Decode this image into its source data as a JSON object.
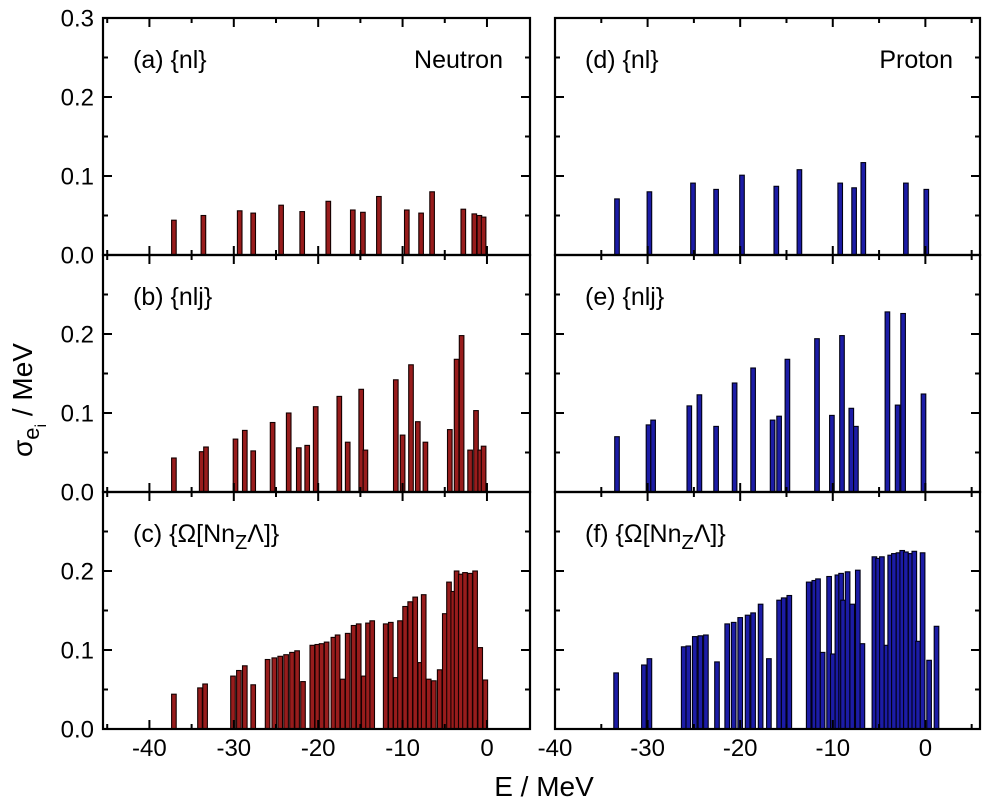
{
  "figure": {
    "background": "#ffffff",
    "text_color": "#000000"
  },
  "chart_data": {
    "type": "bar",
    "title": "",
    "description": "2x3 grid of panels: single-particle energy uncertainties sigma_ei vs energy E for neutrons (left, dark red) and protons (right, dark blue) in three bases",
    "x_axis": {
      "label": "E / MeV",
      "major_ticks": [
        -40,
        -30,
        -20,
        -10,
        0
      ],
      "minor_step": 5,
      "left_column_range": [
        -45.5,
        5.1
      ],
      "right_column_range": [
        -40.0,
        5.9
      ]
    },
    "y_axis": {
      "label": "sigma_ei / MeV",
      "label_segments": [
        {
          "t": "σ"
        },
        {
          "t": "e",
          "sub": true
        },
        {
          "t": "i",
          "subsub": true
        },
        {
          "t": " / MeV"
        }
      ],
      "range": [
        0,
        0.3
      ],
      "major_ticks": [
        0.0,
        0.1,
        0.2,
        0.3
      ],
      "minor_step": 0.05,
      "tick_labels_top_row": [
        "0.3",
        "0.2",
        "0.1",
        "0.0"
      ],
      "tick_labels_other_rows": [
        "0.2",
        "0.1",
        "0.0"
      ]
    },
    "colors": {
      "neutron_fill": "#981c1c",
      "neutron_edge": "#140000",
      "proton_fill": "#1c1ca6",
      "proton_edge": "#000014",
      "axis": "#000000"
    },
    "panels": [
      {
        "key": "a",
        "row": 0,
        "col": 0,
        "series": "neutron",
        "corner_label": "Neutron",
        "label_segments": [
          {
            "t": "(a) {nl}"
          }
        ],
        "bars": [
          [
            -37.1,
            0.044
          ],
          [
            -33.6,
            0.05
          ],
          [
            -29.3,
            0.056
          ],
          [
            -27.7,
            0.053
          ],
          [
            -24.4,
            0.063
          ],
          [
            -21.9,
            0.055
          ],
          [
            -18.8,
            0.068
          ],
          [
            -15.9,
            0.057
          ],
          [
            -14.7,
            0.054
          ],
          [
            -12.8,
            0.074
          ],
          [
            -9.5,
            0.057
          ],
          [
            -7.8,
            0.053
          ],
          [
            -6.5,
            0.08
          ],
          [
            -2.8,
            0.058
          ],
          [
            -1.5,
            0.052
          ],
          [
            -0.9,
            0.05
          ],
          [
            -0.4,
            0.048
          ]
        ]
      },
      {
        "key": "d",
        "row": 0,
        "col": 1,
        "series": "proton",
        "corner_label": "Proton",
        "label_segments": [
          {
            "t": "(d) {nl}"
          }
        ],
        "bars": [
          [
            -33.3,
            0.071
          ],
          [
            -29.8,
            0.08
          ],
          [
            -25.1,
            0.091
          ],
          [
            -22.6,
            0.083
          ],
          [
            -19.8,
            0.101
          ],
          [
            -16.1,
            0.087
          ],
          [
            -13.6,
            0.108
          ],
          [
            -9.2,
            0.091
          ],
          [
            -7.7,
            0.085
          ],
          [
            -6.7,
            0.117
          ],
          [
            -2.1,
            0.091
          ],
          [
            0.1,
            0.083
          ]
        ]
      },
      {
        "key": "b",
        "row": 1,
        "col": 0,
        "series": "neutron",
        "corner_label": "",
        "label_segments": [
          {
            "t": "(b) {nlj}"
          }
        ],
        "bars": [
          [
            -37.1,
            0.043
          ],
          [
            -33.8,
            0.051
          ],
          [
            -33.3,
            0.057
          ],
          [
            -29.8,
            0.067
          ],
          [
            -28.7,
            0.078
          ],
          [
            -27.7,
            0.052
          ],
          [
            -25.4,
            0.088
          ],
          [
            -23.5,
            0.1
          ],
          [
            -22.3,
            0.056
          ],
          [
            -21.3,
            0.059
          ],
          [
            -20.3,
            0.108
          ],
          [
            -17.5,
            0.121
          ],
          [
            -16.5,
            0.063
          ],
          [
            -14.9,
            0.13
          ],
          [
            -14.4,
            0.053
          ],
          [
            -10.8,
            0.142
          ],
          [
            -10.0,
            0.072
          ],
          [
            -9.0,
            0.161
          ],
          [
            -8.2,
            0.089
          ],
          [
            -7.3,
            0.063
          ],
          [
            -4.4,
            0.079
          ],
          [
            -3.6,
            0.168
          ],
          [
            -3.0,
            0.198
          ],
          [
            -2.0,
            0.053
          ],
          [
            -1.3,
            0.103
          ],
          [
            -0.8,
            0.053
          ],
          [
            -0.4,
            0.058
          ]
        ]
      },
      {
        "key": "e",
        "row": 1,
        "col": 1,
        "series": "proton",
        "corner_label": "",
        "label_segments": [
          {
            "t": "(e) {nlj}"
          }
        ],
        "bars": [
          [
            -33.3,
            0.07
          ],
          [
            -29.9,
            0.085
          ],
          [
            -29.4,
            0.091
          ],
          [
            -25.5,
            0.109
          ],
          [
            -24.4,
            0.123
          ],
          [
            -22.6,
            0.083
          ],
          [
            -20.6,
            0.138
          ],
          [
            -18.6,
            0.157
          ],
          [
            -16.5,
            0.091
          ],
          [
            -15.8,
            0.096
          ],
          [
            -14.9,
            0.168
          ],
          [
            -11.7,
            0.194
          ],
          [
            -10.1,
            0.097
          ],
          [
            -9.0,
            0.198
          ],
          [
            -8.0,
            0.106
          ],
          [
            -7.5,
            0.083
          ],
          [
            -4.1,
            0.228
          ],
          [
            -3.0,
            0.11
          ],
          [
            -2.4,
            0.226
          ],
          [
            -0.2,
            0.124
          ]
        ]
      },
      {
        "key": "c",
        "row": 2,
        "col": 0,
        "series": "neutron",
        "corner_label": "",
        "label_segments": [
          {
            "t": "(c) {Ω[Nn"
          },
          {
            "t": "Z",
            "sub": true
          },
          {
            "t": "Λ]}"
          }
        ],
        "bars": [
          [
            -37.1,
            0.044
          ],
          [
            -34.0,
            0.052
          ],
          [
            -33.4,
            0.057
          ],
          [
            -30.1,
            0.067
          ],
          [
            -29.4,
            0.074
          ],
          [
            -28.7,
            0.08
          ],
          [
            -27.7,
            0.056
          ],
          [
            -26.0,
            0.088
          ],
          [
            -25.2,
            0.09
          ],
          [
            -24.5,
            0.092
          ],
          [
            -23.8,
            0.094
          ],
          [
            -23.1,
            0.097
          ],
          [
            -22.5,
            0.099
          ],
          [
            -21.8,
            0.06
          ],
          [
            -20.7,
            0.106
          ],
          [
            -20.1,
            0.107
          ],
          [
            -19.6,
            0.108
          ],
          [
            -19.0,
            0.11
          ],
          [
            -18.2,
            0.116
          ],
          [
            -17.7,
            0.119
          ],
          [
            -17.1,
            0.063
          ],
          [
            -16.5,
            0.121
          ],
          [
            -15.8,
            0.131
          ],
          [
            -15.2,
            0.133
          ],
          [
            -14.6,
            0.067
          ],
          [
            -14.1,
            0.134
          ],
          [
            -13.6,
            0.137
          ],
          [
            -12.0,
            0.133
          ],
          [
            -11.4,
            0.135
          ],
          [
            -10.8,
            0.065
          ],
          [
            -10.3,
            0.137
          ],
          [
            -9.7,
            0.155
          ],
          [
            -9.1,
            0.161
          ],
          [
            -8.5,
            0.167
          ],
          [
            -7.9,
            0.084
          ],
          [
            -7.5,
            0.17
          ],
          [
            -6.9,
            0.063
          ],
          [
            -6.3,
            0.061
          ],
          [
            -5.6,
            0.075
          ],
          [
            -5.0,
            0.146
          ],
          [
            -4.5,
            0.186
          ],
          [
            -4.0,
            0.174
          ],
          [
            -3.6,
            0.2
          ],
          [
            -3.1,
            0.196
          ],
          [
            -2.6,
            0.198
          ],
          [
            -2.0,
            0.197
          ],
          [
            -1.4,
            0.2
          ],
          [
            -0.8,
            0.103
          ],
          [
            -0.2,
            0.062
          ]
        ]
      },
      {
        "key": "f",
        "row": 2,
        "col": 1,
        "series": "proton",
        "corner_label": "",
        "label_segments": [
          {
            "t": "(f) {Ω[Nn"
          },
          {
            "t": "Z",
            "sub": true
          },
          {
            "t": "Λ]}"
          }
        ],
        "bars": [
          [
            -33.4,
            0.071
          ],
          [
            -30.4,
            0.081
          ],
          [
            -29.8,
            0.089
          ],
          [
            -26.1,
            0.104
          ],
          [
            -25.6,
            0.105
          ],
          [
            -24.9,
            0.117
          ],
          [
            -24.3,
            0.118
          ],
          [
            -23.7,
            0.119
          ],
          [
            -22.5,
            0.085
          ],
          [
            -21.4,
            0.133
          ],
          [
            -20.7,
            0.135
          ],
          [
            -20.0,
            0.141
          ],
          [
            -19.2,
            0.144
          ],
          [
            -18.6,
            0.147
          ],
          [
            -17.8,
            0.158
          ],
          [
            -16.9,
            0.089
          ],
          [
            -15.8,
            0.163
          ],
          [
            -15.3,
            0.166
          ],
          [
            -14.7,
            0.169
          ],
          [
            -12.6,
            0.186
          ],
          [
            -12.0,
            0.188
          ],
          [
            -11.6,
            0.19
          ],
          [
            -11.1,
            0.097
          ],
          [
            -10.4,
            0.193
          ],
          [
            -10.0,
            0.095
          ],
          [
            -9.5,
            0.195
          ],
          [
            -9.1,
            0.197
          ],
          [
            -8.9,
            0.163
          ],
          [
            -8.4,
            0.199
          ],
          [
            -7.9,
            0.158
          ],
          [
            -7.3,
            0.201
          ],
          [
            -6.8,
            0.108
          ],
          [
            -5.5,
            0.218
          ],
          [
            -5.1,
            0.216
          ],
          [
            -4.7,
            0.218
          ],
          [
            -4.2,
            0.106
          ],
          [
            -3.8,
            0.22
          ],
          [
            -3.4,
            0.222
          ],
          [
            -2.9,
            0.223
          ],
          [
            -2.5,
            0.226
          ],
          [
            -2.1,
            0.224
          ],
          [
            -1.6,
            0.222
          ],
          [
            -1.2,
            0.225
          ],
          [
            -0.8,
            0.111
          ],
          [
            -0.3,
            0.223
          ],
          [
            0.4,
            0.087
          ],
          [
            1.2,
            0.13
          ]
        ]
      }
    ]
  }
}
